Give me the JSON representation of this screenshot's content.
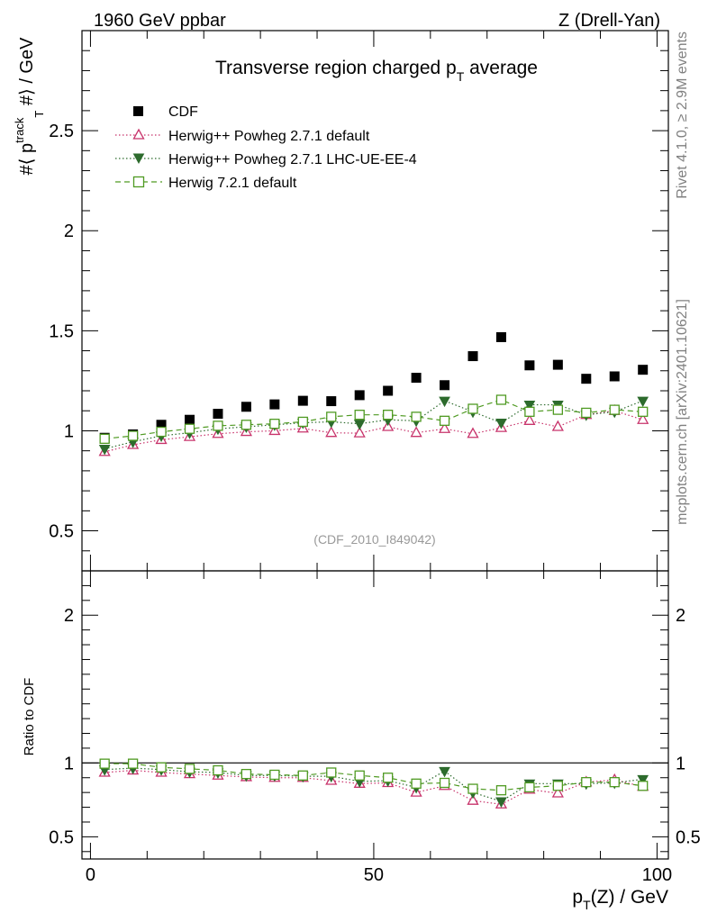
{
  "header": {
    "left": "1960 GeV ppbar",
    "right": "Z (Drell-Yan)"
  },
  "side_labels": {
    "rivet": "Rivet 4.1.0, ≥ 2.9M events",
    "mcplots": "mcplots.cern.ch [arXiv:2401.10621]"
  },
  "chart_data": {
    "type": "scatter",
    "title": "Transverse region charged p_T average",
    "title_main": "Transverse region charged p",
    "title_sub": "T",
    "title_tail": " average",
    "analysis_id": "(CDF_2010_I849042)",
    "xlabel": "p_T(Z) / GeV",
    "ylabel": "#⟨ p_T^track #⟩ / GeV",
    "xlim": [
      -1.5,
      102
    ],
    "upper": {
      "ylim": [
        0.3,
        3.0
      ],
      "yticks": [
        0.5,
        1,
        1.5,
        2,
        2.5
      ],
      "ytick_labels": [
        "0.5",
        "1",
        "1.5",
        "2",
        "2.5"
      ]
    },
    "ratio": {
      "ylabel": "Ratio to CDF",
      "ylim": [
        0.35,
        2.3
      ],
      "yticks": [
        0.5,
        1,
        2
      ],
      "ytick_labels": [
        "0.5",
        "1",
        "2"
      ],
      "reference": 1.0
    },
    "xticks": [
      0,
      50,
      100
    ],
    "xtick_labels": [
      "0",
      "50",
      "100"
    ],
    "x": [
      2.5,
      7.5,
      12.5,
      17.5,
      22.5,
      27.5,
      32.5,
      37.5,
      42.5,
      47.5,
      52.5,
      57.5,
      62.5,
      67.5,
      72.5,
      77.5,
      82.5,
      87.5,
      92.5,
      97.5
    ],
    "series": [
      {
        "name": "CDF",
        "color": "#000000",
        "marker": "filled-square",
        "line": "none",
        "values": [
          0.965,
          0.982,
          1.03,
          1.055,
          1.085,
          1.12,
          1.132,
          1.15,
          1.148,
          1.178,
          1.2,
          1.265,
          1.228,
          1.373,
          1.468,
          1.327,
          1.33,
          1.26,
          1.272,
          1.305
        ]
      },
      {
        "name": "Herwig++ Powheg 2.7.1 default",
        "color": "#c8336b",
        "marker": "open-triangle-up",
        "line": "dotted",
        "values": [
          0.895,
          0.93,
          0.955,
          0.97,
          0.985,
          0.995,
          1.0,
          1.012,
          0.99,
          0.988,
          1.02,
          0.99,
          1.01,
          0.985,
          1.015,
          1.05,
          1.02,
          1.08,
          1.1,
          1.055
        ],
        "ratio": [
          0.935,
          0.95,
          0.935,
          0.925,
          0.915,
          0.905,
          0.9,
          0.9,
          0.88,
          0.86,
          0.865,
          0.8,
          0.845,
          0.745,
          0.72,
          0.82,
          0.795,
          0.87,
          0.885,
          0.84
        ]
      },
      {
        "name": "Herwig++ Powheg 2.7.1 LHC-UE-EE-4",
        "color": "#2d6b2d",
        "marker": "filled-triangle-down",
        "line": "dotted",
        "values": [
          0.91,
          0.945,
          0.975,
          0.99,
          1.01,
          1.02,
          1.03,
          1.04,
          1.045,
          1.035,
          1.055,
          1.05,
          1.15,
          1.095,
          1.04,
          1.13,
          1.13,
          1.08,
          1.095,
          1.15
        ],
        "ratio": [
          0.955,
          0.965,
          0.955,
          0.94,
          0.935,
          0.915,
          0.915,
          0.91,
          0.91,
          0.875,
          0.88,
          0.835,
          0.945,
          0.8,
          0.74,
          0.86,
          0.86,
          0.86,
          0.865,
          0.89
        ]
      },
      {
        "name": "Herwig 7.2.1 default",
        "color": "#4f9a22",
        "marker": "open-square",
        "line": "dashed",
        "values": [
          0.96,
          0.975,
          0.995,
          1.01,
          1.025,
          1.03,
          1.035,
          1.045,
          1.07,
          1.08,
          1.08,
          1.07,
          1.05,
          1.11,
          1.155,
          1.095,
          1.105,
          1.09,
          1.105,
          1.095
        ],
        "ratio": [
          0.995,
          0.995,
          0.97,
          0.96,
          0.95,
          0.925,
          0.92,
          0.915,
          0.935,
          0.915,
          0.9,
          0.86,
          0.865,
          0.825,
          0.815,
          0.835,
          0.845,
          0.87,
          0.87,
          0.845
        ]
      }
    ]
  }
}
